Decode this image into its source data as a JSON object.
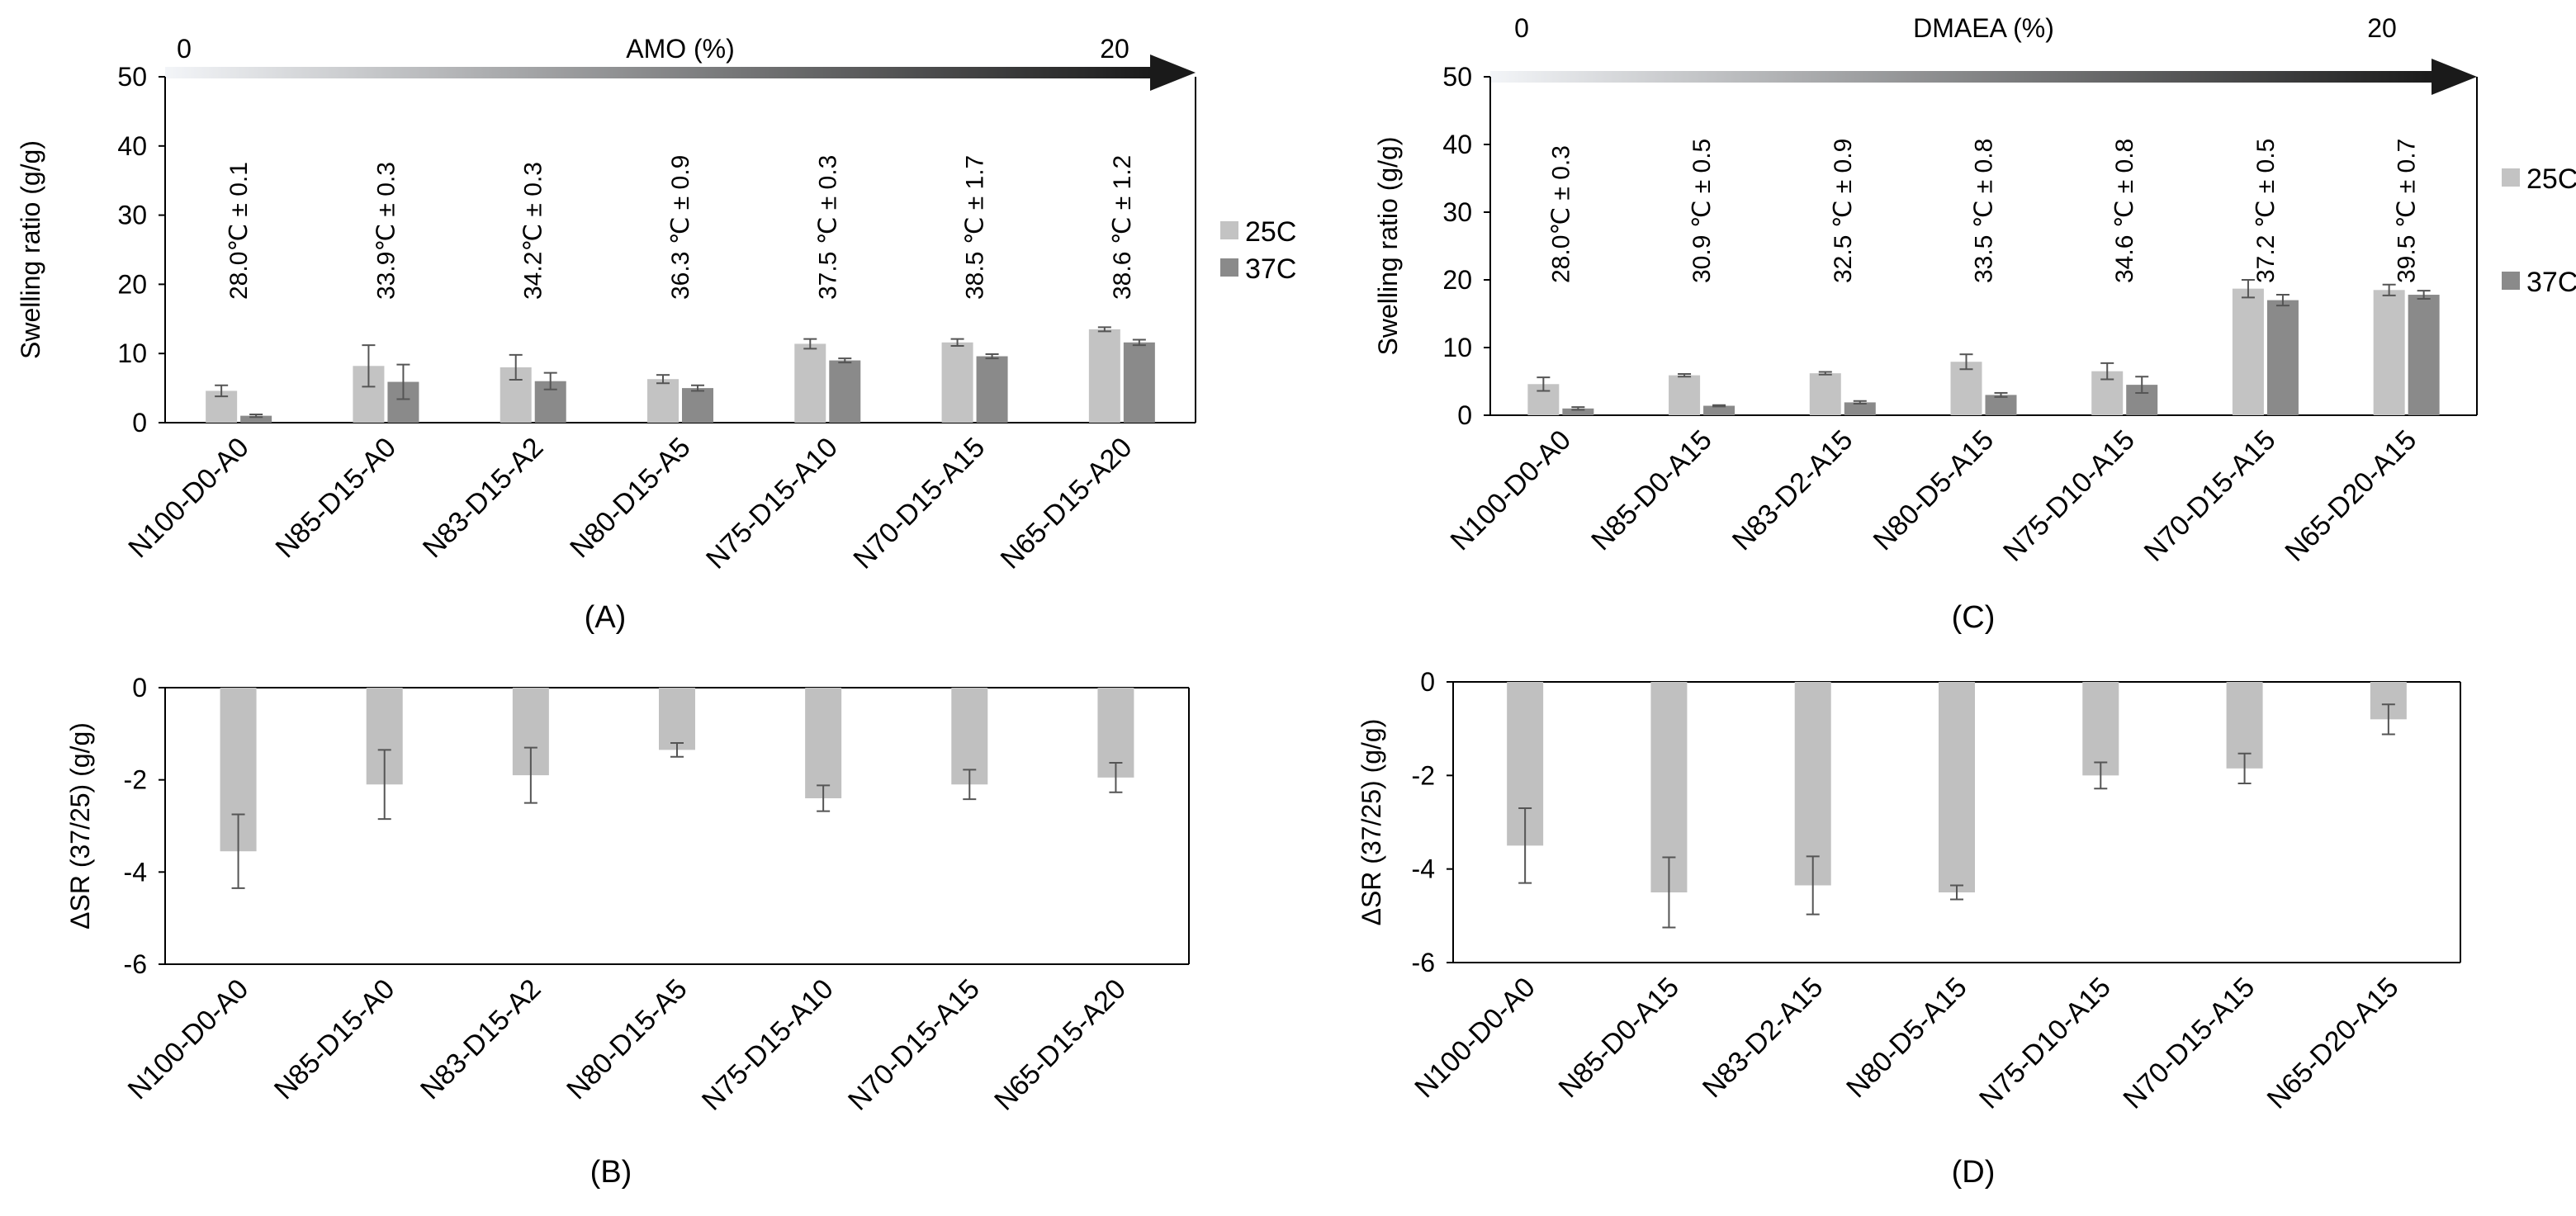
{
  "colors": {
    "series25": "#c3c3c3",
    "series37": "#8a8a8a",
    "delta": "#c0c0c0",
    "arrowStart": "#f3f5f8",
    "arrowEnd": "#1a1a1a",
    "axis": "#000000",
    "errorbar": "#555555"
  },
  "chart_data": [
    {
      "id": "A",
      "type": "bar",
      "panel_label": "(A)",
      "ylabel": "Swelling ratio (g/g)",
      "ylim": [
        0,
        50
      ],
      "yticks": [
        0,
        10,
        20,
        30,
        40,
        50
      ],
      "gradient_arrow": {
        "label": "AMO (%)",
        "start": "0",
        "end": "20"
      },
      "categories": [
        "N100-D0-A0",
        "N85-D15-A0",
        "N83-D15-A2",
        "N80-D15-A5",
        "N75-D15-A10",
        "N70-D15-A15",
        "N65-D15-A20"
      ],
      "series": [
        {
          "name": "25C",
          "values": [
            4.6,
            8.2,
            8.0,
            6.3,
            11.4,
            11.6,
            13.5
          ],
          "errors": [
            0.8,
            3.0,
            1.8,
            0.6,
            0.7,
            0.5,
            0.3
          ]
        },
        {
          "name": "37C",
          "values": [
            1.0,
            5.9,
            6.0,
            5.0,
            9.0,
            9.6,
            11.6
          ],
          "errors": [
            0.2,
            2.5,
            1.2,
            0.4,
            0.3,
            0.3,
            0.4
          ]
        }
      ],
      "annotations": [
        "28.0℃ ± 0.1",
        "33.9℃ ± 0.3",
        "34.2℃ ± 0.3",
        "36.3 ℃ ± 0.9",
        "37.5 ℃ ± 0.3",
        "38.5 ℃ ± 1.7",
        "38.6 ℃ ± 1.2"
      ],
      "legend": [
        "25C",
        "37C"
      ],
      "legend_position": "right"
    },
    {
      "id": "B",
      "type": "bar",
      "panel_label": "(B)",
      "ylabel": "ΔSR (37/25) (g/g)",
      "ylim": [
        -6,
        0
      ],
      "yticks": [
        0,
        -2,
        -4,
        -6
      ],
      "categories": [
        "N100-D0-A0",
        "N85-D15-A0",
        "N83-D15-A2",
        "N80-D15-A5",
        "N75-D15-A10",
        "N70-D15-A15",
        "N65-D15-A20"
      ],
      "series": [
        {
          "name": "ΔSR",
          "values": [
            -3.55,
            -2.1,
            -1.9,
            -1.35,
            -2.4,
            -2.1,
            -1.95
          ],
          "errors": [
            0.8,
            0.75,
            0.6,
            0.15,
            0.28,
            0.32,
            0.32
          ]
        }
      ]
    },
    {
      "id": "C",
      "type": "bar",
      "panel_label": "(C)",
      "ylabel": "Swelling ratio (g/g)",
      "ylim": [
        0,
        50
      ],
      "yticks": [
        0,
        10,
        20,
        30,
        40,
        50
      ],
      "gradient_arrow": {
        "label": "DMAEA (%)",
        "start": "0",
        "end": "20"
      },
      "categories": [
        "N100-D0-A0",
        "N85-D0-A15",
        "N83-D2-A15",
        "N80-D5-A15",
        "N75-D10-A15",
        "N70-D15-A15",
        "N65-D20-A15"
      ],
      "series": [
        {
          "name": "25C",
          "values": [
            4.6,
            5.9,
            6.2,
            7.9,
            6.5,
            18.7,
            18.5
          ],
          "errors": [
            1.0,
            0.2,
            0.2,
            1.1,
            1.2,
            1.3,
            0.8
          ]
        },
        {
          "name": "37C",
          "values": [
            1.0,
            1.4,
            1.9,
            3.0,
            4.5,
            17.0,
            17.8
          ],
          "errors": [
            0.2,
            0.1,
            0.2,
            0.3,
            1.2,
            0.8,
            0.6
          ]
        }
      ],
      "annotations": [
        "28.0℃ ± 0.3",
        "30.9 ℃ ± 0.5",
        "32.5 ℃ ± 0.9",
        "33.5 ℃ ± 0.8",
        "34.6 ℃ ± 0.8",
        "37.2 ℃ ± 0.5",
        "39.5 ℃ ± 0.7"
      ],
      "legend": [
        "25C",
        "37C"
      ],
      "legend_position": "right"
    },
    {
      "id": "D",
      "type": "bar",
      "panel_label": "(D)",
      "ylabel": "ΔSR (37/25) (g/g)",
      "ylim": [
        -6,
        0
      ],
      "yticks": [
        0,
        -2,
        -4,
        -6
      ],
      "categories": [
        "N100-D0-A0",
        "N85-D0-A15",
        "N83-D2-A15",
        "N80-D5-A15",
        "N75-D10-A15",
        "N70-D15-A15",
        "N65-D20-A15"
      ],
      "series": [
        {
          "name": "ΔSR",
          "values": [
            -3.5,
            -4.5,
            -4.35,
            -4.5,
            -2.0,
            -1.85,
            -0.8
          ],
          "errors": [
            0.8,
            0.75,
            0.62,
            0.15,
            0.28,
            0.32,
            0.32
          ]
        }
      ]
    }
  ]
}
